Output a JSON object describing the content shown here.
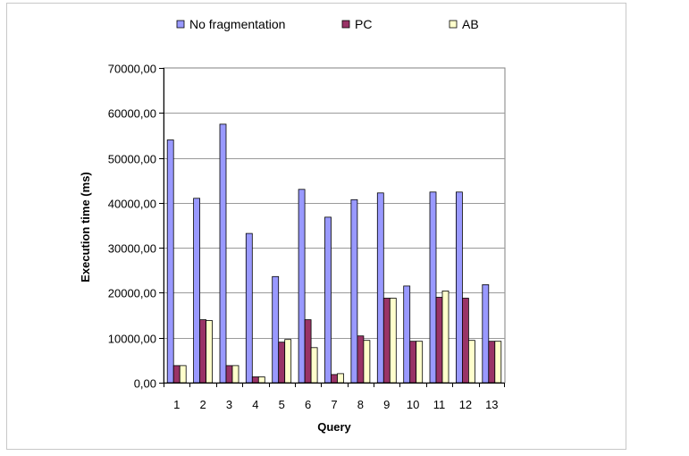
{
  "chart_data": {
    "type": "bar",
    "title": "",
    "xlabel": "Query",
    "ylabel": "Execution time (ms)",
    "ylim": [
      0,
      70000
    ],
    "ytick_step": 10000,
    "ytick_labels": [
      "0,00",
      "10000,00",
      "20000,00",
      "30000,00",
      "40000,00",
      "50000,00",
      "60000,00",
      "70000,00"
    ],
    "categories": [
      "1",
      "2",
      "3",
      "4",
      "5",
      "6",
      "7",
      "8",
      "9",
      "10",
      "11",
      "12",
      "13"
    ],
    "series": [
      {
        "name": "No fragmentation",
        "color": "#9999ff",
        "values": [
          54000,
          41000,
          57500,
          33200,
          23600,
          43000,
          36800,
          40700,
          42200,
          21500,
          42400,
          42400,
          21800
        ]
      },
      {
        "name": "PC",
        "color": "#993366",
        "values": [
          3800,
          14000,
          3800,
          1300,
          9000,
          14000,
          1800,
          10400,
          18800,
          9200,
          19000,
          18800,
          9200
        ]
      },
      {
        "name": "AB",
        "color": "#ffffcc",
        "values": [
          3800,
          13800,
          3800,
          1300,
          9600,
          7800,
          2000,
          9400,
          18800,
          9200,
          20400,
          9400,
          9200
        ]
      }
    ],
    "grid": true,
    "legend_position": "top"
  }
}
